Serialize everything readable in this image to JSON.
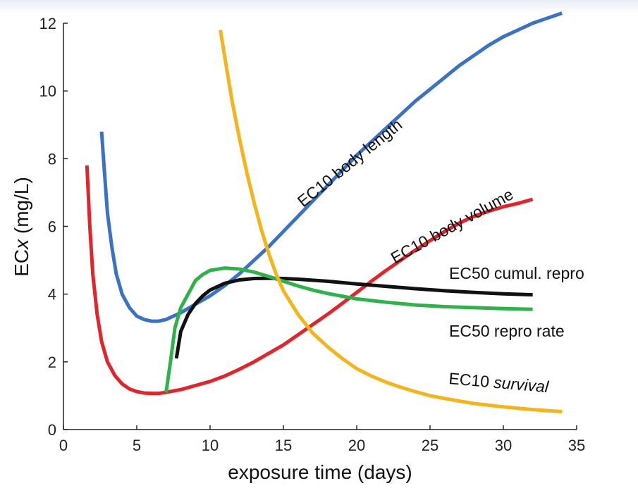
{
  "chart_data": {
    "type": "line",
    "xlabel": "exposure time (days)",
    "ylabel_prefix": "EC",
    "ylabel_italic": "x",
    "ylabel_suffix": " (mg/L)",
    "xlim": [
      0,
      35
    ],
    "ylim": [
      0,
      12
    ],
    "xticks": [
      0,
      5,
      10,
      15,
      20,
      25,
      30,
      35
    ],
    "yticks": [
      0,
      2,
      4,
      6,
      8,
      10,
      12
    ],
    "grid": false,
    "series": [
      {
        "name": "EC10 body length",
        "color": "#3a72c4",
        "x": [
          2.6,
          2.8,
          3.0,
          3.3,
          3.6,
          4.0,
          4.5,
          5.0,
          5.5,
          6.0,
          6.5,
          7.0,
          7.5,
          8,
          9,
          10,
          11,
          12,
          13,
          14,
          15,
          16,
          17,
          18,
          19,
          20,
          21,
          22,
          23,
          24,
          25,
          26,
          27,
          28,
          29,
          30,
          31,
          32,
          33,
          34
        ],
        "y": [
          8.8,
          7.6,
          6.4,
          5.4,
          4.6,
          4.0,
          3.6,
          3.35,
          3.25,
          3.2,
          3.2,
          3.25,
          3.35,
          3.45,
          3.7,
          3.95,
          4.25,
          4.6,
          5.0,
          5.4,
          5.85,
          6.3,
          6.75,
          7.2,
          7.65,
          8.1,
          8.5,
          8.9,
          9.3,
          9.7,
          10.05,
          10.4,
          10.75,
          11.05,
          11.35,
          11.6,
          11.8,
          12.0,
          12.15,
          12.3
        ]
      },
      {
        "name": "EC10 body volume",
        "color": "#e0262b",
        "x": [
          1.6,
          1.8,
          2.0,
          2.3,
          2.6,
          3.0,
          3.5,
          4.0,
          4.5,
          5.0,
          5.5,
          6.0,
          6.5,
          7.0,
          8,
          9,
          10,
          11,
          12,
          13,
          14,
          15,
          16,
          17,
          18,
          19,
          20,
          21,
          22,
          23,
          24,
          25,
          26,
          27,
          28,
          29,
          30,
          31,
          32
        ],
        "y": [
          7.8,
          6.0,
          4.6,
          3.4,
          2.6,
          2.0,
          1.6,
          1.35,
          1.2,
          1.12,
          1.08,
          1.07,
          1.07,
          1.1,
          1.18,
          1.3,
          1.42,
          1.58,
          1.78,
          2.0,
          2.25,
          2.5,
          2.8,
          3.1,
          3.4,
          3.72,
          4.05,
          4.38,
          4.7,
          5.0,
          5.3,
          5.58,
          5.85,
          6.1,
          6.3,
          6.45,
          6.58,
          6.68,
          6.8
        ]
      },
      {
        "name": "EC50 cumul. repro",
        "color": "#111111",
        "x": [
          7.7,
          8.0,
          8.5,
          9.0,
          9.5,
          10,
          11,
          12,
          13,
          14,
          15,
          16,
          18,
          20,
          22,
          24,
          26,
          28,
          30,
          32
        ],
        "y": [
          2.1,
          2.9,
          3.4,
          3.72,
          3.95,
          4.12,
          4.32,
          4.42,
          4.46,
          4.47,
          4.46,
          4.44,
          4.38,
          4.3,
          4.23,
          4.16,
          4.1,
          4.05,
          4.01,
          3.98
        ]
      },
      {
        "name": "EC50 repro rate",
        "color": "#2fb24a",
        "x": [
          7.0,
          7.3,
          7.6,
          8.0,
          8.5,
          9.0,
          9.5,
          10,
          11,
          12,
          13,
          14,
          15,
          16,
          17,
          18,
          19,
          20,
          22,
          24,
          26,
          28,
          30,
          32
        ],
        "y": [
          1.1,
          2.0,
          3.0,
          3.6,
          4.0,
          4.4,
          4.58,
          4.7,
          4.77,
          4.74,
          4.65,
          4.52,
          4.38,
          4.24,
          4.12,
          4.02,
          3.94,
          3.86,
          3.76,
          3.68,
          3.63,
          3.6,
          3.57,
          3.55
        ]
      },
      {
        "name": "EC10 survival",
        "color": "#f3b51b",
        "x": [
          10.7,
          11.0,
          11.5,
          12.0,
          12.5,
          13,
          13.5,
          14,
          14.5,
          15,
          16,
          17,
          18,
          19,
          20,
          21,
          22,
          23,
          24,
          25,
          26,
          27,
          28,
          29,
          30,
          31,
          32,
          33,
          34
        ],
        "y": [
          11.8,
          11.0,
          9.7,
          8.6,
          7.6,
          6.7,
          5.9,
          5.2,
          4.6,
          4.1,
          3.4,
          2.85,
          2.45,
          2.1,
          1.8,
          1.58,
          1.4,
          1.25,
          1.12,
          1.0,
          0.92,
          0.84,
          0.77,
          0.72,
          0.67,
          0.63,
          0.59,
          0.56,
          0.53
        ]
      }
    ]
  }
}
